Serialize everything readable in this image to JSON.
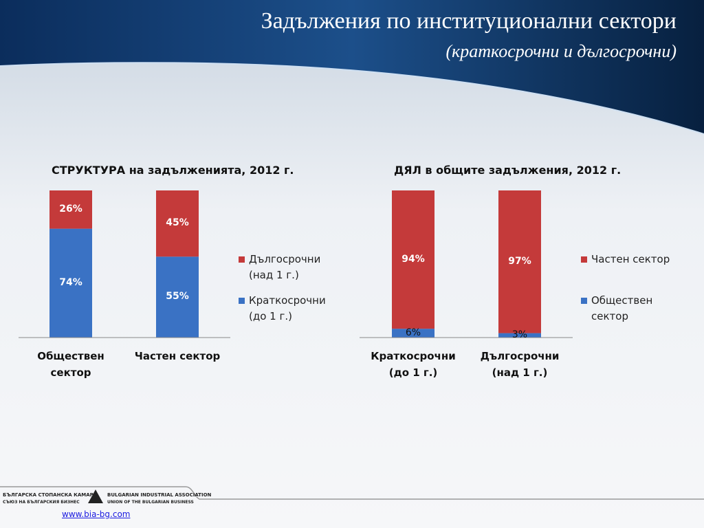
{
  "header": {
    "title": "Задължения по институционални сектори",
    "subtitle": "(краткосрочни и дългосрочни)"
  },
  "chart_data": [
    {
      "type": "bar",
      "stacked": true,
      "title": "СТРУКТУРА на задълженията, 2012 г.",
      "categories": [
        "Обществен сектор",
        "Частен сектор"
      ],
      "ylim": [
        0,
        100
      ],
      "series": [
        {
          "name": "Дългосрочни (над 1 г.)",
          "color": "#c43a3a",
          "values": [
            26,
            45
          ],
          "value_labels": [
            "26%",
            "45%"
          ]
        },
        {
          "name": "Краткосрочни (до 1 г.)",
          "color": "#3a72c4",
          "values": [
            74,
            55
          ],
          "value_labels": [
            "74%",
            "55%"
          ]
        }
      ]
    },
    {
      "type": "bar",
      "stacked": true,
      "title": "ДЯЛ в общите задължения, 2012 г.",
      "categories": [
        "Краткосрочни (до 1 г.)",
        "Дългосрочни (над 1 г.)"
      ],
      "ylim": [
        0,
        100
      ],
      "series": [
        {
          "name": "Частен сектор",
          "color": "#c43a3a",
          "values": [
            94,
            97
          ],
          "value_labels": [
            "94%",
            "97%"
          ]
        },
        {
          "name": "Обществен сектор",
          "color": "#3a72c4",
          "values": [
            6,
            3
          ],
          "value_labels": [
            "6%",
            "3%"
          ]
        }
      ]
    }
  ],
  "footer": {
    "org_bg": "БЪЛГАРСКА СТОПАНСКА КАМАРА",
    "org_en": "BULGARIAN INDUSTRIAL ASSOCIATION",
    "union_bg": "СЪЮЗ НА БЪЛГАРСКИЯ БИЗНЕС",
    "union_en": "UNION OF THE BULGARIAN BUSINESS",
    "link": "www.bia-bg.com"
  }
}
